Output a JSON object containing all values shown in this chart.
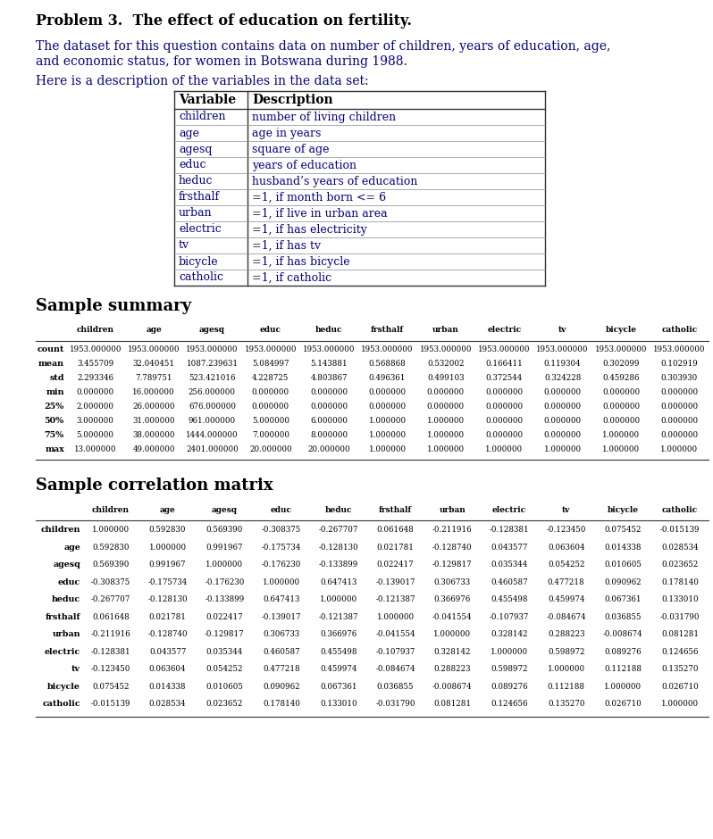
{
  "title": "Problem 3.  The effect of education on fertility.",
  "intro_text_line1": "The dataset for this question contains data on number of children, years of education, age,",
  "intro_text_line2": "and economic status, for women in Botswana during 1988.",
  "desc_intro": "Here is a description of the variables in the data set:",
  "var_table_headers": [
    "Variable",
    "Description"
  ],
  "var_table_rows": [
    [
      "children",
      "number of living children"
    ],
    [
      "age",
      "age in years"
    ],
    [
      "agesq",
      "square of age"
    ],
    [
      "educ",
      "years of education"
    ],
    [
      "heduc",
      "husband’s years of education"
    ],
    [
      "frsthalf",
      "=1, if month born <= 6"
    ],
    [
      "urban",
      "=1, if live in urban area"
    ],
    [
      "electric",
      "=1, if has electricity"
    ],
    [
      "tv",
      "=1, if has tv"
    ],
    [
      "bicycle",
      "=1, if has bicycle"
    ],
    [
      "catholic",
      "=1, if catholic"
    ]
  ],
  "summary_title": "Sample summary",
  "summary_cols": [
    "children",
    "age",
    "agesq",
    "educ",
    "heduc",
    "frsthalf",
    "urban",
    "electric",
    "tv",
    "bicycle",
    "catholic"
  ],
  "summary_rows": [
    "count",
    "mean",
    "std",
    "min",
    "25%",
    "50%",
    "75%",
    "max"
  ],
  "summary_data": [
    [
      "1953.000000",
      "1953.000000",
      "1953.000000",
      "1953.000000",
      "1953.000000",
      "1953.000000",
      "1953.000000",
      "1953.000000",
      "1953.000000",
      "1953.000000",
      "1953.000000"
    ],
    [
      "3.455709",
      "32.040451",
      "1087.239631",
      "5.084997",
      "5.143881",
      "0.568868",
      "0.532002",
      "0.166411",
      "0.119304",
      "0.302099",
      "0.102919"
    ],
    [
      "2.293346",
      "7.789751",
      "523.421016",
      "4.228725",
      "4.803867",
      "0.496361",
      "0.499103",
      "0.372544",
      "0.324228",
      "0.459286",
      "0.303930"
    ],
    [
      "0.000000",
      "16.000000",
      "256.000000",
      "0.000000",
      "0.000000",
      "0.000000",
      "0.000000",
      "0.000000",
      "0.000000",
      "0.000000",
      "0.000000"
    ],
    [
      "2.000000",
      "26.000000",
      "676.000000",
      "0.000000",
      "0.000000",
      "0.000000",
      "0.000000",
      "0.000000",
      "0.000000",
      "0.000000",
      "0.000000"
    ],
    [
      "3.000000",
      "31.000000",
      "961.000000",
      "5.000000",
      "6.000000",
      "1.000000",
      "1.000000",
      "0.000000",
      "0.000000",
      "0.000000",
      "0.000000"
    ],
    [
      "5.000000",
      "38.000000",
      "1444.000000",
      "7.000000",
      "8.000000",
      "1.000000",
      "1.000000",
      "0.000000",
      "0.000000",
      "1.000000",
      "0.000000"
    ],
    [
      "13.000000",
      "49.000000",
      "2401.000000",
      "20.000000",
      "20.000000",
      "1.000000",
      "1.000000",
      "1.000000",
      "1.000000",
      "1.000000",
      "1.000000"
    ]
  ],
  "corr_title": "Sample correlation matrix",
  "corr_vars": [
    "children",
    "age",
    "agesq",
    "educ",
    "heduc",
    "frsthalf",
    "urban",
    "electric",
    "tv",
    "bicycle",
    "catholic"
  ],
  "corr_data": [
    [
      "1.000000",
      "0.592830",
      "0.569390",
      "-0.308375",
      "-0.267707",
      "0.061648",
      "-0.211916",
      "-0.128381",
      "-0.123450",
      "0.075452",
      "-0.015139"
    ],
    [
      "0.592830",
      "1.000000",
      "0.991967",
      "-0.175734",
      "-0.128130",
      "0.021781",
      "-0.128740",
      "0.043577",
      "0.063604",
      "0.014338",
      "0.028534"
    ],
    [
      "0.569390",
      "0.991967",
      "1.000000",
      "-0.176230",
      "-0.133899",
      "0.022417",
      "-0.129817",
      "0.035344",
      "0.054252",
      "0.010605",
      "0.023652"
    ],
    [
      "-0.308375",
      "-0.175734",
      "-0.176230",
      "1.000000",
      "0.647413",
      "-0.139017",
      "0.306733",
      "0.460587",
      "0.477218",
      "0.090962",
      "0.178140"
    ],
    [
      "-0.267707",
      "-0.128130",
      "-0.133899",
      "0.647413",
      "1.000000",
      "-0.121387",
      "0.366976",
      "0.455498",
      "0.459974",
      "0.067361",
      "0.133010"
    ],
    [
      "0.061648",
      "0.021781",
      "0.022417",
      "-0.139017",
      "-0.121387",
      "1.000000",
      "-0.041554",
      "-0.107937",
      "-0.084674",
      "0.036855",
      "-0.031790"
    ],
    [
      "-0.211916",
      "-0.128740",
      "-0.129817",
      "0.306733",
      "0.366976",
      "-0.041554",
      "1.000000",
      "0.328142",
      "0.288223",
      "-0.008674",
      "0.081281"
    ],
    [
      "-0.128381",
      "0.043577",
      "0.035344",
      "0.460587",
      "0.455498",
      "-0.107937",
      "0.328142",
      "1.000000",
      "0.598972",
      "0.089276",
      "0.124656"
    ],
    [
      "-0.123450",
      "0.063604",
      "0.054252",
      "0.477218",
      "0.459974",
      "-0.084674",
      "0.288223",
      "0.598972",
      "1.000000",
      "0.112188",
      "0.135270"
    ],
    [
      "0.075452",
      "0.014338",
      "0.010605",
      "0.090962",
      "0.067361",
      "0.036855",
      "-0.008674",
      "0.089276",
      "0.112188",
      "1.000000",
      "0.026710"
    ],
    [
      "-0.015139",
      "0.028534",
      "0.023652",
      "0.178140",
      "0.133010",
      "-0.031790",
      "0.081281",
      "0.124656",
      "0.135270",
      "0.026710",
      "1.000000"
    ]
  ],
  "bg_color": "#ffffff",
  "text_color_blue": "#00008b",
  "text_color_black": "#000000",
  "text_color_title": "#000000"
}
